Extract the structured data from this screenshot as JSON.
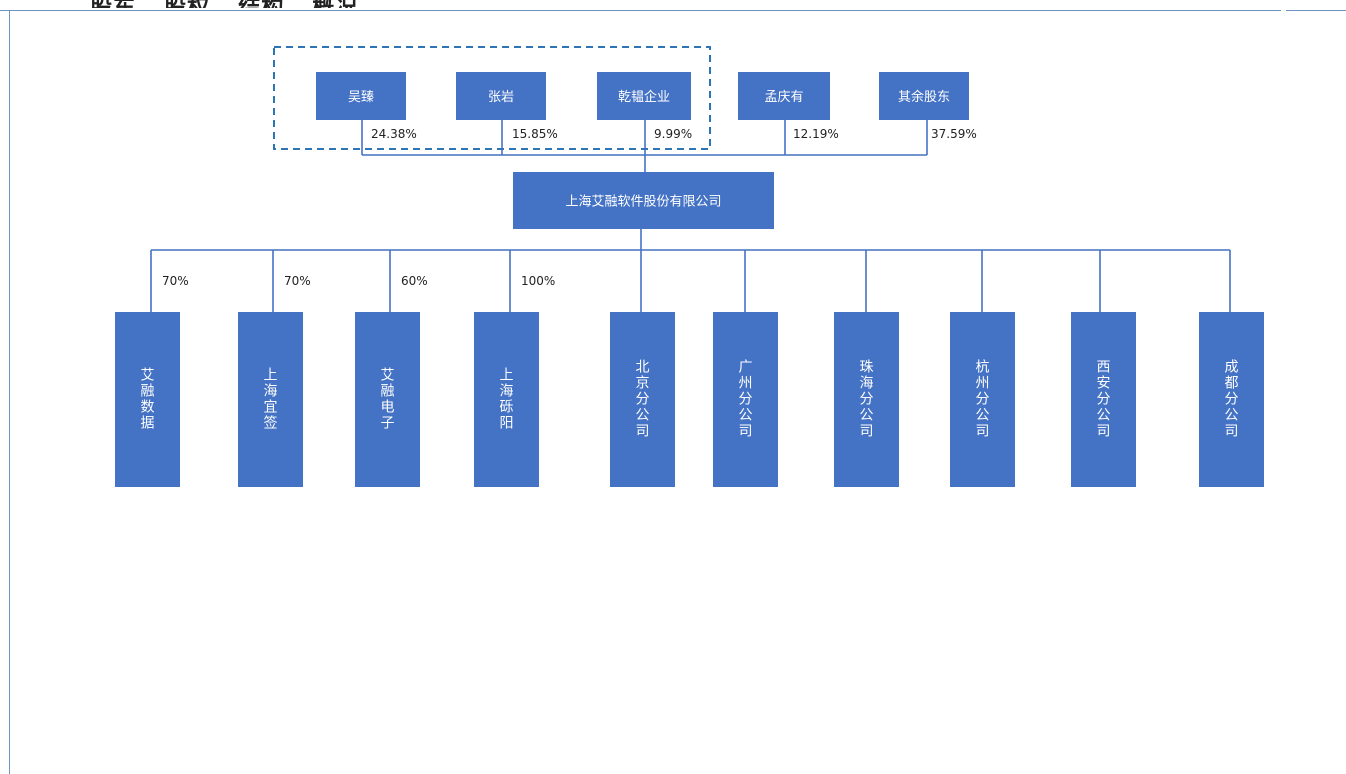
{
  "page": {
    "heading_fragment": "...股东...股权...结构...概况"
  },
  "colors": {
    "box": "#4472c4",
    "connector": "#4472c4",
    "group_border": "#2e75b6",
    "text_on_box": "#ffffff",
    "frame": "#6f93bf"
  },
  "shareholders": [
    {
      "name": "吴臻",
      "share": "24.38%"
    },
    {
      "name": "张岩",
      "share": "15.85%"
    },
    {
      "name": "乾韫企业",
      "share": "9.99%"
    },
    {
      "name": "孟庆有",
      "share": "12.19%"
    },
    {
      "name": "其余股东",
      "share": "37.59%"
    }
  ],
  "company": {
    "name": "上海艾融软件股份有限公司"
  },
  "subsidiaries": [
    {
      "name": "艾融数据",
      "share": "70%"
    },
    {
      "name": "上海宜签",
      "share": "70%"
    },
    {
      "name": "艾融电子",
      "share": "60%"
    },
    {
      "name": "上海砾阳",
      "share": "100%"
    },
    {
      "name": "北京分公司",
      "share": ""
    },
    {
      "name": "广州分公司",
      "share": ""
    },
    {
      "name": "珠海分公司",
      "share": ""
    },
    {
      "name": "杭州分公司",
      "share": ""
    },
    {
      "name": "西安分公司",
      "share": ""
    },
    {
      "name": "成都分公司",
      "share": ""
    }
  ]
}
